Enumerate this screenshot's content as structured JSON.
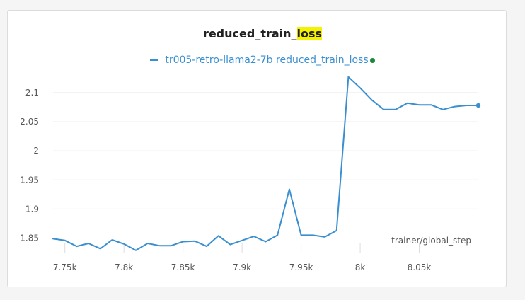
{
  "chart_data": {
    "type": "line",
    "title_prefix": "reduced_train_",
    "title_highlight": "loss",
    "xlabel": "trainer/global_step",
    "ylabel": "",
    "xlim": [
      7740,
      8100
    ],
    "ylim": [
      1.83,
      2.14
    ],
    "xticks": [
      7750,
      7800,
      7850,
      7900,
      7950,
      8000,
      8050
    ],
    "xtick_labels": [
      "7.75k",
      "7.8k",
      "7.85k",
      "7.9k",
      "7.95k",
      "8k",
      "8.05k"
    ],
    "yticks": [
      1.85,
      1.9,
      1.95,
      2,
      2.05,
      2.1
    ],
    "ytick_labels": [
      "1.85",
      "1.9",
      "1.95",
      "2",
      "2.05",
      "2.1"
    ],
    "grid": true,
    "legend_position": "top-center",
    "series": [
      {
        "name": "tr005-retro-llama2-7b reduced_train_loss",
        "color": "#3a8fd0",
        "x": [
          7740,
          7750,
          7760,
          7770,
          7780,
          7790,
          7800,
          7810,
          7820,
          7830,
          7840,
          7850,
          7860,
          7870,
          7880,
          7890,
          7900,
          7910,
          7920,
          7930,
          7940,
          7950,
          7960,
          7970,
          7980,
          7990,
          8000,
          8010,
          8020,
          8030,
          8040,
          8050,
          8060,
          8070,
          8080,
          8090,
          8100
        ],
        "y": [
          1.849,
          1.846,
          1.836,
          1.841,
          1.832,
          1.847,
          1.84,
          1.829,
          1.841,
          1.837,
          1.837,
          1.844,
          1.845,
          1.836,
          1.854,
          1.839,
          1.846,
          1.853,
          1.844,
          1.855,
          1.934,
          1.855,
          1.855,
          1.852,
          1.863,
          2.127,
          2.108,
          2.087,
          2.071,
          2.071,
          2.082,
          2.079,
          2.079,
          2.071,
          2.076,
          2.078,
          2.078
        ]
      }
    ]
  }
}
